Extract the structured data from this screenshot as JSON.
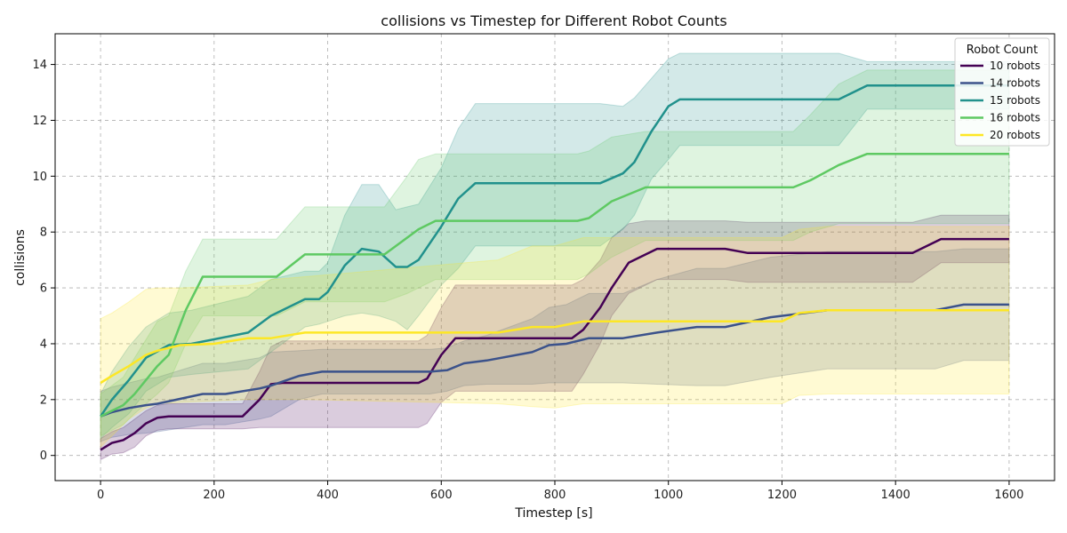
{
  "chart_data": {
    "type": "line",
    "title": "collisions vs Timestep for Different Robot Counts",
    "xlabel": "Timestep [s]",
    "ylabel": "collisions",
    "xlim": [
      -80,
      1680
    ],
    "ylim": [
      -0.9,
      15.1
    ],
    "xticks": [
      0,
      200,
      400,
      600,
      800,
      1000,
      1200,
      1400,
      1600
    ],
    "yticks": [
      0,
      2,
      4,
      6,
      8,
      10,
      12,
      14
    ],
    "grid": true,
    "legend_title": "Robot Count",
    "legend_position": "top-right",
    "series": [
      {
        "name": "10 robots",
        "color": "#440154",
        "x": [
          0,
          20,
          40,
          60,
          80,
          100,
          120,
          250,
          280,
          300,
          320,
          560,
          575,
          600,
          625,
          800,
          830,
          850,
          880,
          900,
          930,
          960,
          980,
          1000,
          1100,
          1140,
          1430,
          1480,
          1600
        ],
        "mean": [
          0.2,
          0.45,
          0.55,
          0.8,
          1.15,
          1.35,
          1.4,
          1.4,
          2.0,
          2.55,
          2.6,
          2.6,
          2.75,
          3.6,
          4.2,
          4.2,
          4.2,
          4.5,
          5.3,
          6.0,
          6.9,
          7.2,
          7.4,
          7.4,
          7.4,
          7.25,
          7.25,
          7.75,
          7.75
        ],
        "lower": [
          -0.15,
          0.05,
          0.1,
          0.3,
          0.7,
          0.9,
          0.95,
          0.95,
          1.0,
          1.0,
          1.0,
          1.0,
          1.15,
          1.9,
          2.3,
          2.3,
          2.3,
          2.9,
          4.0,
          5.0,
          5.8,
          6.1,
          6.3,
          6.3,
          6.3,
          6.2,
          6.2,
          6.9,
          6.9
        ],
        "upper": [
          0.6,
          0.85,
          1.0,
          1.3,
          1.6,
          1.8,
          1.85,
          1.85,
          3.0,
          3.9,
          4.1,
          4.1,
          4.3,
          5.3,
          6.1,
          6.1,
          6.1,
          6.3,
          7.0,
          7.8,
          8.3,
          8.4,
          8.4,
          8.4,
          8.4,
          8.35,
          8.35,
          8.6,
          8.6
        ]
      },
      {
        "name": "14 robots",
        "color": "#3b528b",
        "x": [
          0,
          20,
          50,
          80,
          100,
          180,
          220,
          280,
          300,
          350,
          390,
          580,
          610,
          640,
          680,
          760,
          790,
          820,
          860,
          920,
          980,
          1050,
          1100,
          1180,
          1280,
          1470,
          1520,
          1600
        ],
        "mean": [
          1.4,
          1.55,
          1.7,
          1.8,
          1.85,
          2.2,
          2.2,
          2.4,
          2.5,
          2.85,
          3.0,
          3.0,
          3.05,
          3.3,
          3.4,
          3.7,
          3.95,
          4.0,
          4.2,
          4.2,
          4.4,
          4.6,
          4.6,
          4.95,
          5.2,
          5.2,
          5.4,
          5.4
        ],
        "lower": [
          0.5,
          0.65,
          0.75,
          0.8,
          0.85,
          1.1,
          1.1,
          1.3,
          1.4,
          2.0,
          2.2,
          2.2,
          2.3,
          2.5,
          2.55,
          2.55,
          2.6,
          2.6,
          2.6,
          2.6,
          2.55,
          2.5,
          2.5,
          2.8,
          3.1,
          3.1,
          3.4,
          3.4
        ],
        "upper": [
          2.3,
          2.45,
          2.6,
          2.75,
          2.8,
          3.3,
          3.3,
          3.5,
          3.7,
          3.75,
          3.8,
          3.8,
          3.85,
          4.1,
          4.3,
          4.9,
          5.3,
          5.4,
          5.8,
          5.8,
          6.3,
          6.7,
          6.7,
          7.1,
          7.3,
          7.3,
          7.4,
          7.4
        ]
      },
      {
        "name": "15 robots",
        "color": "#21918c",
        "x": [
          0,
          20,
          50,
          80,
          120,
          160,
          260,
          300,
          360,
          385,
          400,
          430,
          460,
          490,
          520,
          540,
          560,
          600,
          630,
          660,
          880,
          920,
          940,
          970,
          1000,
          1020,
          1300,
          1350,
          1600
        ],
        "mean": [
          1.4,
          2.0,
          2.7,
          3.5,
          3.95,
          4.0,
          4.4,
          5.0,
          5.6,
          5.6,
          5.85,
          6.8,
          7.4,
          7.3,
          6.75,
          6.75,
          7.0,
          8.2,
          9.2,
          9.75,
          9.75,
          10.1,
          10.5,
          11.6,
          12.5,
          12.75,
          12.75,
          13.25,
          13.25
        ],
        "lower": [
          0.6,
          1.0,
          1.5,
          2.3,
          2.8,
          2.9,
          3.1,
          3.7,
          4.6,
          4.7,
          4.8,
          5.0,
          5.1,
          5.0,
          4.8,
          4.5,
          5.0,
          6.1,
          6.7,
          7.5,
          7.5,
          8.1,
          8.6,
          9.9,
          10.6,
          11.1,
          11.1,
          12.4,
          12.4
        ],
        "upper": [
          2.2,
          3.0,
          3.9,
          4.6,
          5.1,
          5.2,
          5.7,
          6.3,
          6.6,
          6.6,
          6.9,
          8.6,
          9.7,
          9.7,
          8.8,
          8.9,
          9.0,
          10.3,
          11.7,
          12.6,
          12.6,
          12.5,
          12.8,
          13.5,
          14.2,
          14.4,
          14.4,
          14.1,
          14.1
        ]
      },
      {
        "name": "16 robots",
        "color": "#5ec962",
        "x": [
          0,
          20,
          40,
          60,
          100,
          120,
          150,
          180,
          310,
          360,
          500,
          540,
          560,
          590,
          840,
          860,
          900,
          960,
          1220,
          1250,
          1300,
          1350,
          1600
        ],
        "mean": [
          1.4,
          1.6,
          1.8,
          2.2,
          3.2,
          3.6,
          5.2,
          6.4,
          6.4,
          7.2,
          7.2,
          7.8,
          8.1,
          8.4,
          8.4,
          8.5,
          9.1,
          9.6,
          9.6,
          9.85,
          10.4,
          10.8,
          10.8
        ],
        "lower": [
          0.7,
          0.9,
          1.1,
          1.5,
          2.2,
          2.6,
          4.0,
          5.0,
          5.0,
          5.5,
          5.5,
          5.8,
          6.0,
          6.3,
          6.3,
          6.5,
          7.1,
          7.7,
          7.7,
          8.0,
          8.3,
          8.3,
          8.3
        ],
        "upper": [
          2.2,
          2.5,
          2.8,
          3.5,
          4.8,
          5.0,
          6.6,
          7.75,
          7.75,
          8.9,
          8.9,
          10.0,
          10.6,
          10.8,
          10.8,
          10.9,
          11.4,
          11.6,
          11.6,
          12.2,
          13.3,
          13.8,
          13.8
        ],
        "fill_color": "#5ec962"
      },
      {
        "name": "20 robots",
        "color": "#fde725",
        "x": [
          0,
          20,
          50,
          80,
          100,
          140,
          200,
          260,
          300,
          360,
          700,
          760,
          800,
          850,
          1200,
          1230,
          1280,
          1600
        ],
        "mean": [
          2.6,
          2.85,
          3.2,
          3.6,
          3.75,
          3.95,
          4.0,
          4.2,
          4.2,
          4.4,
          4.4,
          4.6,
          4.6,
          4.8,
          4.8,
          5.1,
          5.2,
          5.2
        ],
        "lower": [
          0.3,
          0.7,
          1.3,
          1.7,
          1.85,
          1.9,
          1.95,
          2.0,
          2.0,
          2.0,
          1.85,
          1.75,
          1.7,
          1.85,
          1.85,
          2.15,
          2.2,
          2.2
        ],
        "upper": [
          4.9,
          5.1,
          5.5,
          5.95,
          6.0,
          6.0,
          6.05,
          6.1,
          6.3,
          6.4,
          7.0,
          7.5,
          7.5,
          7.8,
          7.8,
          8.1,
          8.2,
          8.2
        ]
      }
    ]
  }
}
